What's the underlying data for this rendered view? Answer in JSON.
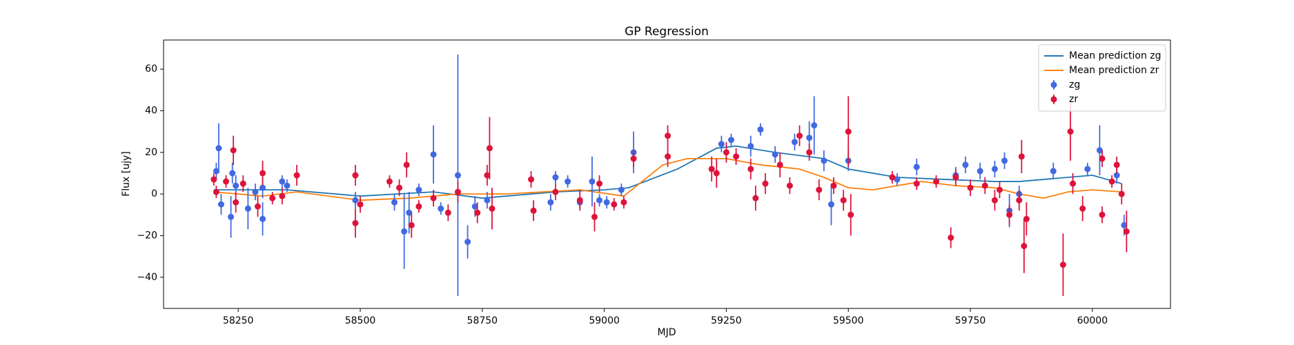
{
  "chart_data": {
    "type": "errorbar",
    "title": "GP Regression",
    "x_label": "MJD",
    "y_label": "Flux [ujy]",
    "xlim": [
      58097,
      60160
    ],
    "ylim": [
      -55,
      74
    ],
    "xticks": [
      58250,
      58500,
      58750,
      59000,
      59250,
      59500,
      59750,
      60000
    ],
    "yticks": [
      {
        "value": -40,
        "label": "−40"
      },
      {
        "value": -20,
        "label": "−20"
      },
      0,
      20,
      40,
      60
    ],
    "legend": "upper right",
    "grid": false,
    "series": [
      {
        "name": "Mean prediction zg",
        "type": "line",
        "color": "#1f77b4",
        "x": [
          58200,
          58350,
          58500,
          58650,
          58750,
          58900,
          59000,
          59050,
          59150,
          59230,
          59270,
          59350,
          59450,
          59500,
          59600,
          59700,
          59800,
          59850,
          59950,
          60000,
          60060
        ],
        "values": [
          2,
          2,
          -1,
          1,
          -2,
          1,
          2,
          3,
          12,
          22,
          23,
          20,
          17,
          12,
          8,
          7,
          6,
          6,
          8,
          9,
          5
        ]
      },
      {
        "name": "Mean prediction zr",
        "type": "line",
        "color": "#ff7f0e",
        "x": [
          58200,
          58300,
          58370,
          58500,
          58600,
          58700,
          58800,
          58950,
          59040,
          59120,
          59170,
          59250,
          59320,
          59400,
          59450,
          59500,
          59550,
          59650,
          59720,
          59800,
          59850,
          59900,
          59950,
          60000,
          60060
        ],
        "values": [
          1,
          -1,
          1,
          -3,
          -2,
          0,
          0,
          2,
          -1,
          14,
          17,
          17,
          14,
          12,
          8,
          3,
          2,
          6,
          4,
          3,
          0,
          -2,
          1,
          2,
          1
        ]
      },
      {
        "name": "zg",
        "type": "errorbar",
        "color": "#4169e1",
        "x": [
          58205,
          58210,
          58215,
          58235,
          58238,
          58245,
          58270,
          58285,
          58300,
          58300,
          58340,
          58350,
          58490,
          58570,
          58590,
          58600,
          58620,
          58650,
          58665,
          58700,
          58720,
          58735,
          58760,
          58890,
          58900,
          58925,
          58950,
          58975,
          58990,
          59005,
          59035,
          59060,
          59240,
          59260,
          59300,
          59320,
          59350,
          59390,
          59420,
          59430,
          59450,
          59465,
          59500,
          59600,
          59640,
          59720,
          59740,
          59770,
          59800,
          59820,
          59830,
          59850,
          59920,
          59990,
          60015,
          60050,
          60065
        ],
        "values": [
          11,
          22,
          -5,
          -11,
          10,
          4,
          -7,
          1,
          3,
          -12,
          6,
          4,
          -3,
          -4,
          -18,
          -9,
          2,
          19,
          -7,
          9,
          -23,
          -6,
          -3,
          -4,
          8,
          6,
          -4,
          6,
          -3,
          -4,
          2,
          20,
          24,
          26,
          23,
          31,
          19,
          25,
          27,
          33,
          16,
          -5,
          16,
          7,
          13,
          9,
          14,
          11,
          12,
          16,
          -8,
          0,
          11,
          12,
          21,
          9,
          -15
        ],
        "errors": [
          4,
          12,
          5,
          10,
          5,
          5,
          10,
          4,
          5,
          8,
          3,
          3,
          4,
          4,
          18,
          10,
          3,
          14,
          3,
          58,
          8,
          5,
          4,
          4,
          3,
          3,
          3,
          12,
          3,
          3,
          3,
          10,
          4,
          3,
          5,
          3,
          4,
          4,
          8,
          14,
          5,
          10,
          5,
          3,
          4,
          4,
          4,
          4,
          4,
          4,
          8,
          4,
          4,
          3,
          12,
          4,
          5
        ]
      },
      {
        "name": "zr",
        "type": "errorbar",
        "color": "#dc143c",
        "x": [
          58200,
          58205,
          58225,
          58240,
          58245,
          58260,
          58290,
          58300,
          58320,
          58340,
          58370,
          58490,
          58490,
          58500,
          58560,
          58580,
          58595,
          58605,
          58620,
          58650,
          58680,
          58700,
          58740,
          58760,
          58765,
          58770,
          58850,
          58855,
          58900,
          58950,
          58980,
          58990,
          59020,
          59040,
          59060,
          59130,
          59130,
          59220,
          59230,
          59250,
          59270,
          59300,
          59310,
          59330,
          59360,
          59380,
          59400,
          59420,
          59440,
          59470,
          59490,
          59500,
          59505,
          59590,
          59640,
          59680,
          59710,
          59720,
          59750,
          59780,
          59800,
          59810,
          59830,
          59850,
          59855,
          59860,
          59865,
          59940,
          59955,
          59960,
          59980,
          60020,
          60020,
          60040,
          60050,
          60060,
          60070
        ],
        "values": [
          7,
          1,
          6,
          21,
          -4,
          5,
          -6,
          10,
          -2,
          -1,
          9,
          9,
          -14,
          -5,
          6,
          3,
          14,
          -15,
          -6,
          -2,
          -9,
          1,
          -9,
          9,
          22,
          -7,
          7,
          -8,
          1,
          -3,
          -11,
          5,
          -5,
          -4,
          17,
          28,
          18,
          12,
          10,
          20,
          18,
          12,
          -2,
          5,
          14,
          4,
          28,
          20,
          2,
          4,
          -3,
          30,
          -10,
          8,
          5,
          6,
          -21,
          8,
          3,
          4,
          -3,
          2,
          -10,
          -3,
          18,
          -25,
          -12,
          -34,
          30,
          5,
          -7,
          17,
          -10,
          6,
          14,
          0,
          -18
        ],
        "errors": [
          3,
          3,
          3,
          7,
          5,
          4,
          5,
          6,
          3,
          4,
          5,
          5,
          7,
          4,
          3,
          4,
          6,
          6,
          3,
          4,
          4,
          5,
          5,
          5,
          15,
          10,
          4,
          5,
          4,
          5,
          7,
          4,
          3,
          3,
          4,
          5,
          5,
          6,
          7,
          5,
          4,
          5,
          6,
          5,
          6,
          4,
          5,
          4,
          5,
          4,
          5,
          17,
          10,
          3,
          3,
          3,
          5,
          4,
          4,
          4,
          5,
          4,
          5,
          5,
          8,
          13,
          8,
          15,
          14,
          5,
          6,
          4,
          4,
          3,
          4,
          5,
          10
        ]
      }
    ]
  }
}
